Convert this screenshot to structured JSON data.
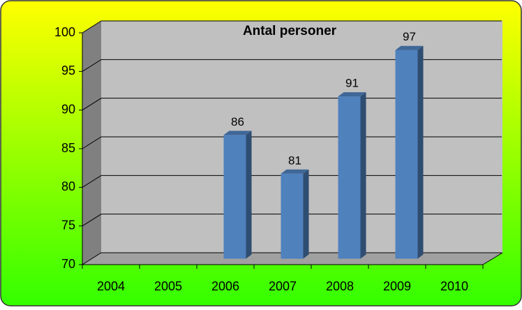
{
  "chart_data": {
    "type": "bar",
    "title": "Antal personer",
    "categories": [
      "2004",
      "2005",
      "2006",
      "2007",
      "2008",
      "2009",
      "2010"
    ],
    "values": [
      null,
      null,
      86,
      81,
      91,
      97,
      null
    ],
    "color": "#4f81bd",
    "ylim": [
      70,
      100
    ],
    "yticks": [
      70,
      75,
      80,
      85,
      90,
      95,
      100
    ],
    "grid": true
  }
}
